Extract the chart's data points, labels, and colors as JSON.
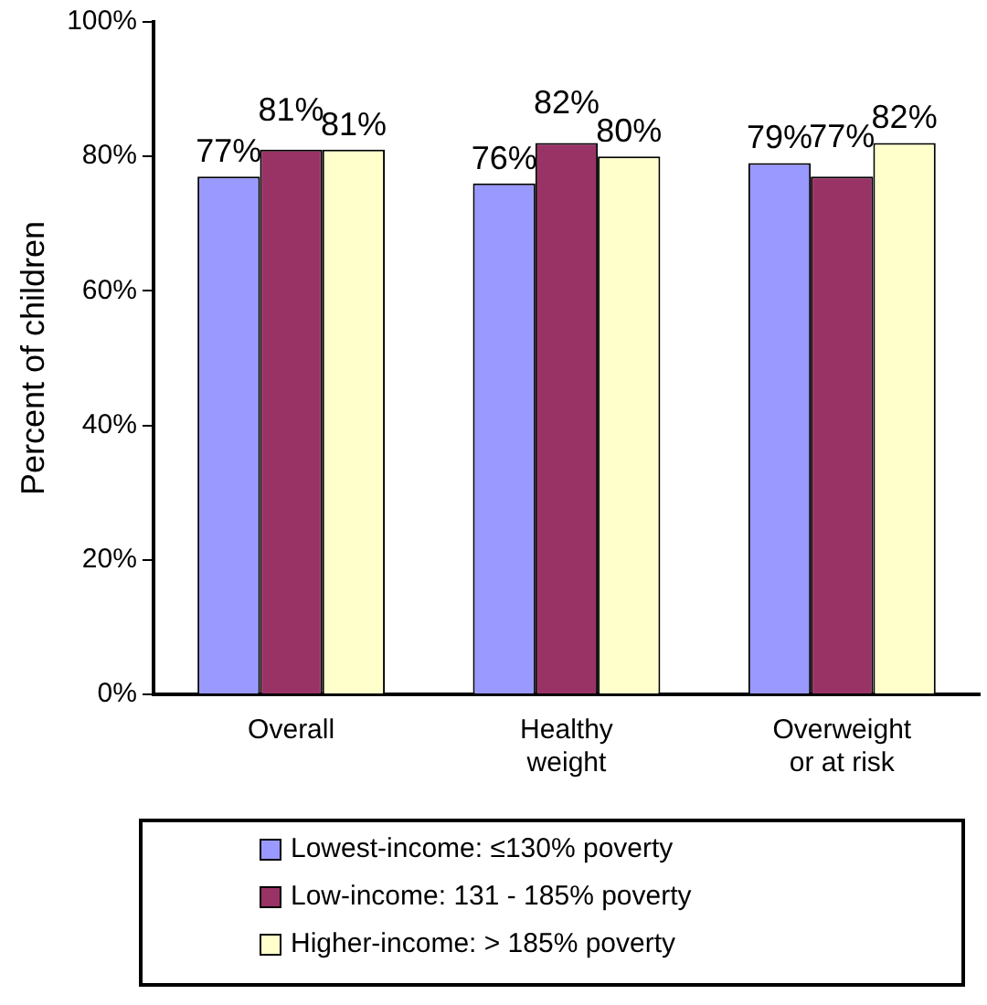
{
  "chart_data": {
    "type": "bar",
    "ylabel": "Percent of children",
    "categories": [
      "Overall",
      "Healthy weight",
      "Overweight or at risk"
    ],
    "series": [
      {
        "name": "Lowest-income:  ≤130% poverty",
        "color": "#9999ff",
        "values": [
          77,
          76,
          79
        ],
        "value_labels": [
          "77%",
          "76%",
          "79%"
        ]
      },
      {
        "name": "Low-income: 131 - 185% poverty",
        "color": "#993366",
        "values": [
          81,
          82,
          77
        ],
        "value_labels": [
          "81%",
          "82%",
          "77%"
        ]
      },
      {
        "name": "Higher-income: > 185% poverty",
        "color": "#ffffcc",
        "values": [
          81,
          80,
          82
        ],
        "value_labels": [
          "81%",
          "80%",
          "82%"
        ]
      }
    ],
    "ylim": [
      0,
      100
    ],
    "yticks": [
      {
        "value": 0,
        "label": "0%"
      },
      {
        "value": 20,
        "label": "20%"
      },
      {
        "value": 40,
        "label": "40%"
      },
      {
        "value": 60,
        "label": "60%"
      },
      {
        "value": 80,
        "label": "80%"
      },
      {
        "value": 100,
        "label": "100%"
      }
    ],
    "grid": false,
    "legend": "bottom"
  }
}
